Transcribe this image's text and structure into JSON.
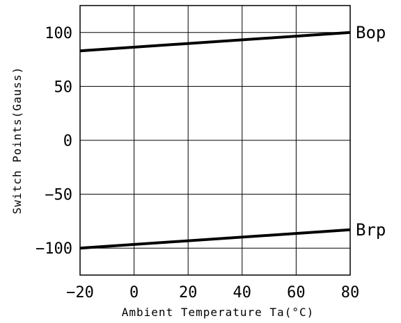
{
  "chart_data": {
    "type": "line",
    "title": "",
    "xlabel": "Ambient Temperature Ta(°C)",
    "ylabel": "Switch Points(Gauss)",
    "xlim": [
      -20,
      80
    ],
    "ylim": [
      -125,
      125
    ],
    "x_ticks": [
      -20,
      0,
      20,
      40,
      60,
      80
    ],
    "y_ticks": [
      -100,
      -50,
      0,
      50,
      100
    ],
    "grid": true,
    "legend": "none",
    "series": [
      {
        "name": "Bop",
        "x": [
          -20,
          80
        ],
        "y": [
          83,
          100
        ]
      },
      {
        "name": "Brp",
        "x": [
          -20,
          80
        ],
        "y": [
          -100,
          -83
        ]
      }
    ]
  }
}
